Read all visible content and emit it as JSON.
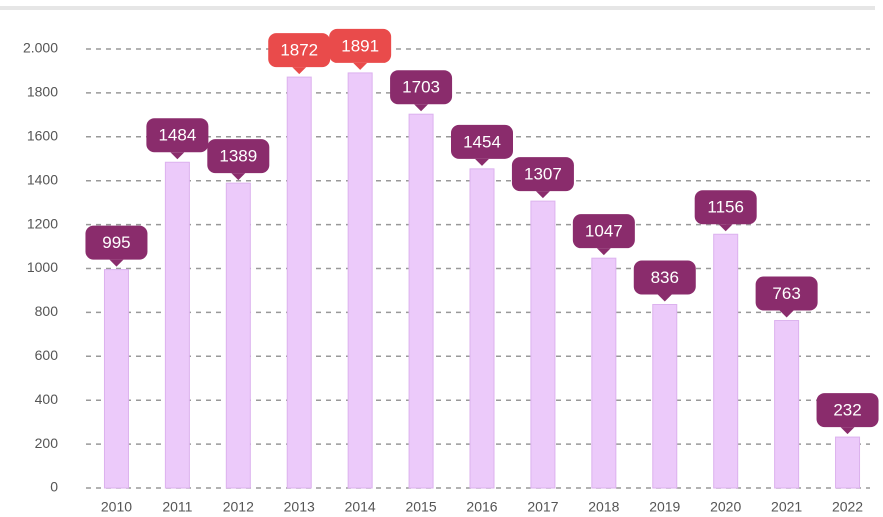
{
  "chart_data": {
    "type": "bar",
    "categories": [
      "2010",
      "2011",
      "2012",
      "2013",
      "2014",
      "2015",
      "2016",
      "2017",
      "2018",
      "2019",
      "2020",
      "2021",
      "2022"
    ],
    "values": [
      995,
      1484,
      1389,
      1872,
      1891,
      1703,
      1454,
      1307,
      1047,
      836,
      1156,
      763,
      232
    ],
    "color": "#eccafa",
    "label_colors": [
      "#8a2c6c",
      "#8a2c6c",
      "#8a2c6c",
      "#e94b4b",
      "#e94b4b",
      "#8a2c6c",
      "#8a2c6c",
      "#8a2c6c",
      "#8a2c6c",
      "#8a2c6c",
      "#8a2c6c",
      "#8a2c6c",
      "#8a2c6c"
    ],
    "ylim": [
      0,
      2000
    ],
    "yticks": [
      0,
      200,
      400,
      600,
      800,
      1000,
      1200,
      1400,
      1600,
      1800,
      {
        "value": 2000,
        "label": "2.000"
      }
    ],
    "grid": true
  }
}
